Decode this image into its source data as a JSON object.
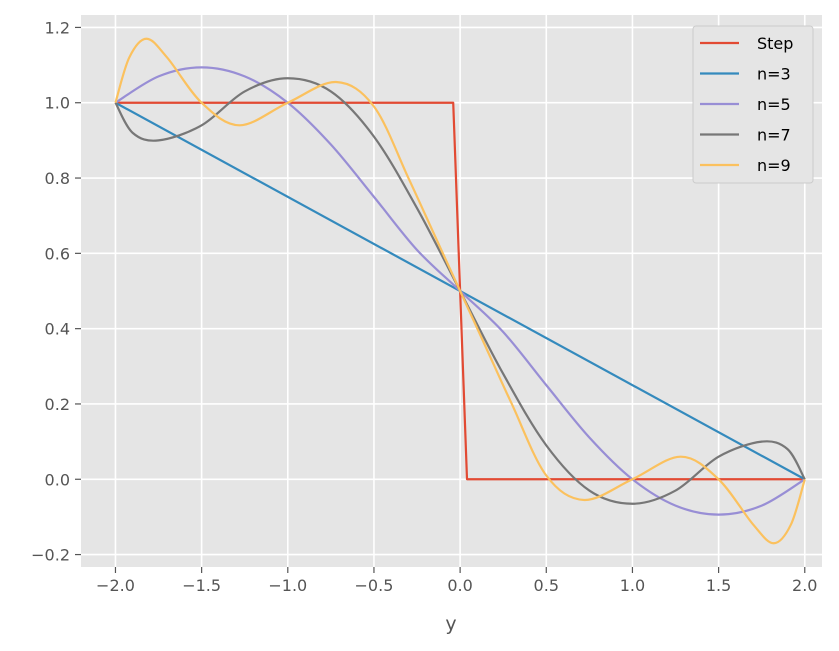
{
  "chart_data": {
    "type": "line",
    "xlabel": "y",
    "ylabel": "",
    "xlim": [
      -2.2,
      2.1
    ],
    "ylim": [
      -0.233,
      1.233
    ],
    "xticks": [
      -2.0,
      -1.5,
      -1.0,
      -0.5,
      0.0,
      0.5,
      1.0,
      1.5,
      2.0
    ],
    "xtick_labels": [
      "−2.0",
      "−1.5",
      "−1.0",
      "−0.5",
      "0.0",
      "0.5",
      "1.0",
      "1.5",
      "2.0"
    ],
    "yticks": [
      -0.2,
      0.0,
      0.2,
      0.4,
      0.6,
      0.8,
      1.0,
      1.2
    ],
    "ytick_labels": [
      "−0.2",
      "0.0",
      "0.2",
      "0.4",
      "0.6",
      "0.8",
      "1.0",
      "1.2"
    ],
    "grid": true,
    "legend_position": "top-right",
    "series": [
      {
        "name": "Step",
        "color": "#E24A33",
        "x": [
          -2.0,
          -0.04,
          0.04,
          2.0
        ],
        "y": [
          1.0,
          1.0,
          0.0,
          0.0
        ]
      },
      {
        "name": "n=3",
        "color": "#348ABD",
        "x": [
          -2.0,
          2.0
        ],
        "y": [
          1.0,
          0.0
        ]
      },
      {
        "name": "n=5",
        "color": "#988ED5",
        "x": [
          -2.0,
          -1.75,
          -1.5,
          -1.25,
          -1.0,
          -0.75,
          -0.5,
          -0.25,
          0.0,
          0.25,
          0.5,
          0.75,
          1.0,
          1.25,
          1.5,
          1.75,
          2.0
        ],
        "y": [
          1.0,
          1.07,
          1.094,
          1.07,
          1.0,
          0.889,
          0.75,
          0.609,
          0.5,
          0.391,
          0.25,
          0.111,
          0.0,
          -0.07,
          -0.094,
          -0.07,
          0.0
        ]
      },
      {
        "name": "n=7",
        "color": "#777777",
        "x": [
          -2.0,
          -1.9,
          -1.75,
          -1.5,
          -1.25,
          -1.0,
          -0.75,
          -0.5,
          -0.25,
          0.0,
          0.25,
          0.5,
          0.75,
          1.0,
          1.25,
          1.5,
          1.75,
          1.9,
          2.0
        ],
        "y": [
          1.0,
          0.92,
          0.9,
          0.94,
          1.03,
          1.065,
          1.03,
          0.91,
          0.72,
          0.5,
          0.28,
          0.09,
          -0.03,
          -0.065,
          -0.03,
          0.06,
          0.1,
          0.08,
          0.0
        ]
      },
      {
        "name": "n=9",
        "color": "#FBC15E",
        "x": [
          -2.0,
          -1.92,
          -1.82,
          -1.7,
          -1.5,
          -1.28,
          -1.0,
          -0.72,
          -0.5,
          -0.3,
          -0.15,
          0.0,
          0.15,
          0.3,
          0.5,
          0.72,
          1.0,
          1.28,
          1.5,
          1.7,
          1.82,
          1.92,
          2.0
        ],
        "y": [
          1.0,
          1.12,
          1.17,
          1.12,
          1.0,
          0.94,
          1.0,
          1.055,
          0.99,
          0.8,
          0.65,
          0.5,
          0.35,
          0.2,
          0.01,
          -0.055,
          0.0,
          0.06,
          0.0,
          -0.12,
          -0.17,
          -0.12,
          0.0
        ]
      }
    ]
  }
}
